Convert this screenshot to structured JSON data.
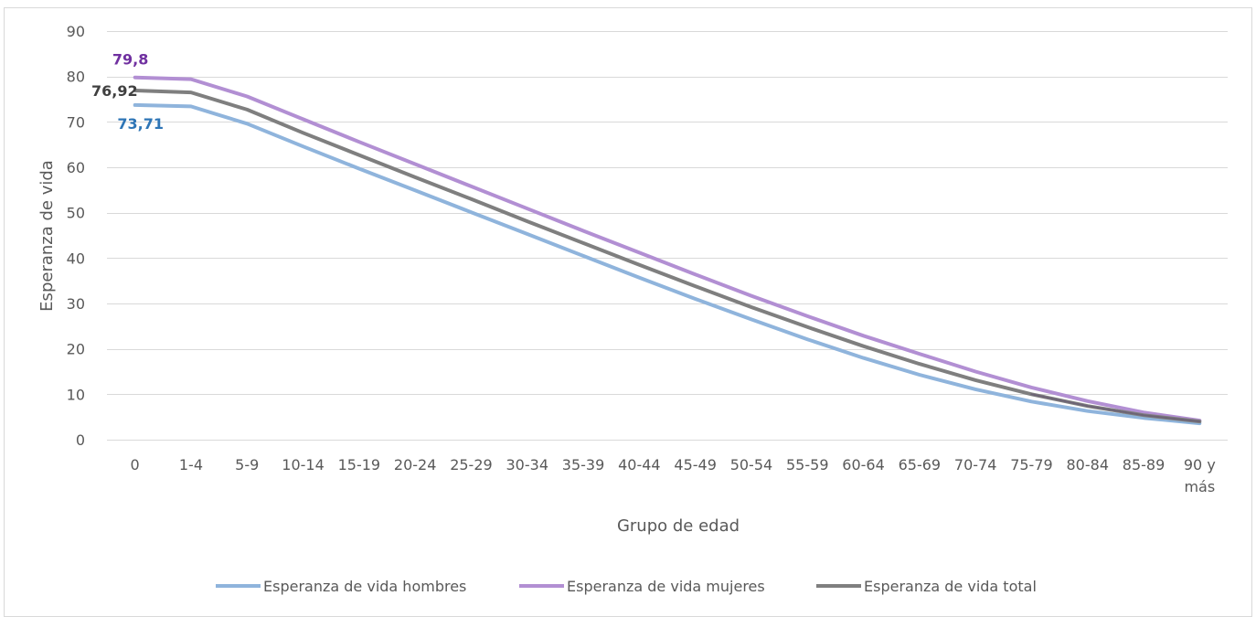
{
  "chart_data": {
    "type": "line",
    "title": "",
    "xlabel": "Grupo de edad",
    "ylabel": "Esperanza de vida",
    "categories": [
      "0",
      "1-4",
      "5-9",
      "10-14",
      "15-19",
      "20-24",
      "25-29",
      "30-34",
      "35-39",
      "40-44",
      "45-49",
      "50-54",
      "55-59",
      "60-64",
      "65-69",
      "70-74",
      "75-79",
      "80-84",
      "85-89",
      "90 y más"
    ],
    "ylim": [
      0,
      90
    ],
    "yticks": [
      "0",
      "10",
      "20",
      "30",
      "40",
      "50",
      "60",
      "70",
      "80",
      "90"
    ],
    "grid": "horizontal",
    "legend_position": "bottom",
    "series": [
      {
        "name": "Esperanza de vida hombres",
        "color": "#8fb4dc",
        "label_color": "#2e75b6",
        "values": [
          73.71,
          73.4,
          69.6,
          64.6,
          59.7,
          54.9,
          50.1,
          45.3,
          40.5,
          35.7,
          31.0,
          26.5,
          22.1,
          18.0,
          14.3,
          11.1,
          8.4,
          6.3,
          4.8,
          3.6
        ],
        "first_point_label": "73,71"
      },
      {
        "name": "Esperanza de vida mujeres",
        "color": "#b28fd3",
        "label_color": "#7030a0",
        "values": [
          79.8,
          79.4,
          75.6,
          70.6,
          65.6,
          60.7,
          55.8,
          50.9,
          46.0,
          41.2,
          36.4,
          31.7,
          27.2,
          22.9,
          18.9,
          15.0,
          11.5,
          8.5,
          6.0,
          4.2
        ],
        "first_point_label": "79,8"
      },
      {
        "name": "Esperanza de vida total",
        "color": "#7f7f7f",
        "label_color": "#404040",
        "values": [
          76.92,
          76.5,
          72.7,
          67.6,
          62.7,
          57.8,
          53.0,
          48.1,
          43.3,
          38.5,
          33.8,
          29.2,
          24.8,
          20.6,
          16.7,
          13.1,
          10.0,
          7.4,
          5.4,
          4.0
        ],
        "first_point_label": "76,92"
      }
    ]
  }
}
